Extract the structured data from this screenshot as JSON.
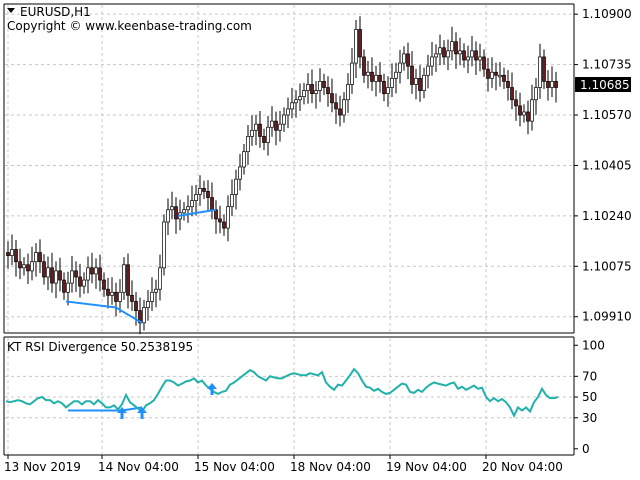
{
  "header": {
    "symbol_label": "EURUSD,H1",
    "copyright": "Copyright © www.keenbase-trading.com"
  },
  "indicator": {
    "label": "KT RSI Divergence 50.2538195"
  },
  "colors": {
    "background": "#ffffff",
    "grid": "#c8c8c8",
    "bull_candle": "#ffffff",
    "bear_candle": "#6b1b1b",
    "candle_outline": "#000000",
    "divergence_line": "#1e90ff",
    "rsi_line": "#20b2aa",
    "arrow": "#1e90ff",
    "price_tag_bg": "#000000",
    "price_tag_text": "#ffffff"
  },
  "chart_data": [
    {
      "type": "candlestick",
      "title": "EURUSD,H1",
      "timeframe": "H1",
      "y_ticks": [
        1.0991,
        1.10075,
        1.1024,
        1.10405,
        1.1057,
        1.10735,
        1.109
      ],
      "y_tick_labels": [
        "1.09910",
        "1.10075",
        "1.10240",
        "1.10405",
        "1.10570",
        "1.10735",
        "1.10900"
      ],
      "ylim": [
        1.0986,
        1.1093
      ],
      "current_price": 1.10685,
      "current_price_label": "1.10685",
      "close_path": [
        [
          0,
          1.1012
        ],
        [
          4,
          1.1011
        ],
        [
          8,
          1.1013
        ],
        [
          12,
          1.1009
        ],
        [
          16,
          1.1007
        ],
        [
          20,
          1.1008
        ],
        [
          24,
          1.1006
        ],
        [
          28,
          1.1009
        ],
        [
          32,
          1.1012
        ],
        [
          36,
          1.1009
        ],
        [
          40,
          1.1004
        ],
        [
          44,
          1.1007
        ],
        [
          48,
          1.1002
        ],
        [
          52,
          1.1006
        ],
        [
          56,
          1.1003
        ],
        [
          60,
          1.0999
        ],
        [
          64,
          1.1002
        ],
        [
          68,
          1.1006
        ],
        [
          72,
          1.1004
        ],
        [
          76,
          1.1001
        ],
        [
          80,
          1.1003
        ],
        [
          84,
          1.1007
        ],
        [
          88,
          1.1005
        ],
        [
          92,
          1.1007
        ],
        [
          96,
          1.1003
        ],
        [
          100,
          1.1
        ],
        [
          104,
          1.0998
        ],
        [
          108,
          1.0999
        ],
        [
          112,
          1.0996
        ],
        [
          116,
          1.0999
        ],
        [
          120,
          1.1008
        ],
        [
          124,
          1.0998
        ],
        [
          128,
          1.0996
        ],
        [
          132,
          1.0993
        ],
        [
          136,
          1.0989
        ],
        [
          140,
          1.0994
        ],
        [
          144,
          1.0996
        ],
        [
          148,
          1.0999
        ],
        [
          152,
          1.1
        ],
        [
          156,
          1.1007
        ],
        [
          160,
          1.1022
        ],
        [
          164,
          1.1026
        ],
        [
          168,
          1.1027
        ],
        [
          172,
          1.1023
        ],
        [
          176,
          1.1025
        ],
        [
          180,
          1.1026
        ],
        [
          184,
          1.1027
        ],
        [
          188,
          1.1029
        ],
        [
          192,
          1.1031
        ],
        [
          196,
          1.1033
        ],
        [
          200,
          1.1032
        ],
        [
          204,
          1.103
        ],
        [
          208,
          1.1026
        ],
        [
          212,
          1.1023
        ],
        [
          216,
          1.1022
        ],
        [
          220,
          1.102
        ],
        [
          224,
          1.1027
        ],
        [
          228,
          1.1031
        ],
        [
          232,
          1.1036
        ],
        [
          236,
          1.104
        ],
        [
          240,
          1.1045
        ],
        [
          244,
          1.105
        ],
        [
          248,
          1.1052
        ],
        [
          252,
          1.1054
        ],
        [
          256,
          1.105
        ],
        [
          260,
          1.1048
        ],
        [
          264,
          1.1053
        ],
        [
          268,
          1.1055
        ],
        [
          272,
          1.1052
        ],
        [
          276,
          1.1054
        ],
        [
          280,
          1.1057
        ],
        [
          284,
          1.1059
        ],
        [
          288,
          1.1061
        ],
        [
          292,
          1.1062
        ],
        [
          296,
          1.1063
        ],
        [
          300,
          1.1065
        ],
        [
          304,
          1.1067
        ],
        [
          308,
          1.1064
        ],
        [
          312,
          1.1065
        ],
        [
          316,
          1.1068
        ],
        [
          320,
          1.1066
        ],
        [
          324,
          1.1064
        ],
        [
          328,
          1.1061
        ],
        [
          332,
          1.1059
        ],
        [
          336,
          1.1057
        ],
        [
          340,
          1.1062
        ],
        [
          344,
          1.1067
        ],
        [
          348,
          1.1074
        ],
        [
          352,
          1.1085
        ],
        [
          356,
          1.1076
        ],
        [
          360,
          1.107
        ],
        [
          364,
          1.1071
        ],
        [
          368,
          1.1068
        ],
        [
          372,
          1.107
        ],
        [
          376,
          1.1068
        ],
        [
          380,
          1.1064
        ],
        [
          384,
          1.1066
        ],
        [
          388,
          1.1069
        ],
        [
          392,
          1.1071
        ],
        [
          396,
          1.1074
        ],
        [
          400,
          1.1077
        ],
        [
          404,
          1.1073
        ],
        [
          408,
          1.1067
        ],
        [
          412,
          1.1069
        ],
        [
          416,
          1.1065
        ],
        [
          420,
          1.107
        ],
        [
          424,
          1.1073
        ],
        [
          428,
          1.1076
        ],
        [
          432,
          1.1077
        ],
        [
          436,
          1.1079
        ],
        [
          440,
          1.1076
        ],
        [
          444,
          1.1078
        ],
        [
          448,
          1.1081
        ],
        [
          452,
          1.1077
        ],
        [
          456,
          1.1078
        ],
        [
          460,
          1.1075
        ],
        [
          464,
          1.1076
        ],
        [
          468,
          1.1078
        ],
        [
          472,
          1.1075
        ],
        [
          476,
          1.1076
        ],
        [
          480,
          1.1072
        ],
        [
          484,
          1.1069
        ],
        [
          488,
          1.1071
        ],
        [
          492,
          1.107
        ],
        [
          496,
          1.107
        ],
        [
          500,
          1.1068
        ],
        [
          504,
          1.1066
        ],
        [
          508,
          1.1062
        ],
        [
          512,
          1.106
        ],
        [
          516,
          1.1057
        ],
        [
          520,
          1.1058
        ],
        [
          524,
          1.1055
        ],
        [
          528,
          1.1062
        ],
        [
          532,
          1.1066
        ],
        [
          536,
          1.1076
        ],
        [
          540,
          1.1068
        ],
        [
          544,
          1.1066
        ],
        [
          548,
          1.1068
        ],
        [
          552,
          1.1066
        ]
      ],
      "divergence_lines": [
        {
          "from": [
            60,
            1.0996
          ],
          "to": [
            110,
            1.0994
          ]
        },
        {
          "from": [
            110,
            1.0994
          ],
          "to": [
            136,
            1.0989
          ]
        },
        {
          "from": [
            172,
            1.1024
          ],
          "to": [
            210,
            1.1026
          ]
        }
      ]
    },
    {
      "type": "line",
      "title": "KT RSI Divergence 50.2538195",
      "y_ticks": [
        0,
        30,
        50,
        70,
        100
      ],
      "y_tick_labels": [
        "0",
        "30",
        "50",
        "70",
        "100"
      ],
      "ylim": [
        -5,
        107
      ],
      "rsi_path": [
        [
          0,
          46
        ],
        [
          4,
          45
        ],
        [
          8,
          46
        ],
        [
          12,
          47
        ],
        [
          16,
          46
        ],
        [
          20,
          44
        ],
        [
          24,
          43
        ],
        [
          28,
          46
        ],
        [
          32,
          49
        ],
        [
          36,
          50
        ],
        [
          40,
          47
        ],
        [
          44,
          47
        ],
        [
          48,
          44
        ],
        [
          52,
          46
        ],
        [
          56,
          44
        ],
        [
          60,
          40
        ],
        [
          64,
          43
        ],
        [
          68,
          46
        ],
        [
          72,
          46
        ],
        [
          76,
          43
        ],
        [
          80,
          46
        ],
        [
          84,
          46
        ],
        [
          88,
          43
        ],
        [
          92,
          47
        ],
        [
          96,
          44
        ],
        [
          100,
          40
        ],
        [
          104,
          40
        ],
        [
          108,
          42
        ],
        [
          112,
          38
        ],
        [
          116,
          43
        ],
        [
          120,
          52
        ],
        [
          124,
          45
        ],
        [
          128,
          42
        ],
        [
          132,
          39
        ],
        [
          136,
          36
        ],
        [
          140,
          42
        ],
        [
          144,
          44
        ],
        [
          148,
          47
        ],
        [
          152,
          53
        ],
        [
          156,
          60
        ],
        [
          160,
          66
        ],
        [
          164,
          66
        ],
        [
          168,
          64
        ],
        [
          172,
          61
        ],
        [
          176,
          63
        ],
        [
          180,
          65
        ],
        [
          184,
          66
        ],
        [
          188,
          68
        ],
        [
          192,
          64
        ],
        [
          196,
          66
        ],
        [
          200,
          61
        ],
        [
          204,
          58
        ],
        [
          208,
          55
        ],
        [
          212,
          53
        ],
        [
          216,
          55
        ],
        [
          220,
          56
        ],
        [
          224,
          62
        ],
        [
          228,
          64
        ],
        [
          232,
          67
        ],
        [
          236,
          70
        ],
        [
          240,
          73
        ],
        [
          244,
          76
        ],
        [
          248,
          74
        ],
        [
          252,
          70
        ],
        [
          256,
          68
        ],
        [
          260,
          66
        ],
        [
          264,
          70
        ],
        [
          268,
          69
        ],
        [
          272,
          68
        ],
        [
          276,
          68
        ],
        [
          280,
          70
        ],
        [
          284,
          72
        ],
        [
          288,
          73
        ],
        [
          292,
          72
        ],
        [
          296,
          71
        ],
        [
          300,
          71
        ],
        [
          304,
          73
        ],
        [
          308,
          72
        ],
        [
          312,
          71
        ],
        [
          316,
          74
        ],
        [
          320,
          64
        ],
        [
          324,
          60
        ],
        [
          328,
          57
        ],
        [
          332,
          62
        ],
        [
          336,
          61
        ],
        [
          340,
          66
        ],
        [
          344,
          71
        ],
        [
          348,
          77
        ],
        [
          352,
          73
        ],
        [
          356,
          66
        ],
        [
          360,
          60
        ],
        [
          364,
          59
        ],
        [
          368,
          56
        ],
        [
          372,
          58
        ],
        [
          376,
          55
        ],
        [
          380,
          53
        ],
        [
          384,
          54
        ],
        [
          388,
          57
        ],
        [
          392,
          60
        ],
        [
          396,
          63
        ],
        [
          400,
          62
        ],
        [
          404,
          55
        ],
        [
          408,
          54
        ],
        [
          412,
          57
        ],
        [
          416,
          55
        ],
        [
          420,
          59
        ],
        [
          424,
          62
        ],
        [
          428,
          64
        ],
        [
          432,
          63
        ],
        [
          436,
          62
        ],
        [
          440,
          61
        ],
        [
          444,
          63
        ],
        [
          448,
          64
        ],
        [
          452,
          58
        ],
        [
          456,
          60
        ],
        [
          460,
          57
        ],
        [
          464,
          59
        ],
        [
          468,
          61
        ],
        [
          472,
          58
        ],
        [
          476,
          59
        ],
        [
          480,
          50
        ],
        [
          484,
          46
        ],
        [
          488,
          49
        ],
        [
          492,
          46
        ],
        [
          496,
          48
        ],
        [
          500,
          45
        ],
        [
          504,
          40
        ],
        [
          508,
          32
        ],
        [
          512,
          40
        ],
        [
          516,
          37
        ],
        [
          520,
          40
        ],
        [
          524,
          36
        ],
        [
          528,
          45
        ],
        [
          532,
          50
        ],
        [
          536,
          58
        ],
        [
          540,
          52
        ],
        [
          544,
          49
        ],
        [
          548,
          49
        ],
        [
          552,
          50
        ]
      ],
      "divergence_lines": [
        {
          "from": [
            62,
            37
          ],
          "to": [
            116,
            37
          ]
        },
        {
          "from": [
            116,
            37
          ],
          "to": [
            136,
            40
          ]
        }
      ],
      "signal_arrows": [
        116,
        136,
        206
      ]
    }
  ],
  "time_axis": {
    "labels": [
      {
        "x": 4,
        "text": "13 Nov 2019"
      },
      {
        "x": 98,
        "text": "14 Nov 04:00"
      },
      {
        "x": 194,
        "text": "15 Nov 04:00"
      },
      {
        "x": 290,
        "text": "18 Nov 04:00"
      },
      {
        "x": 386,
        "text": "19 Nov 04:00"
      },
      {
        "x": 482,
        "text": "20 Nov 04:00"
      }
    ]
  }
}
